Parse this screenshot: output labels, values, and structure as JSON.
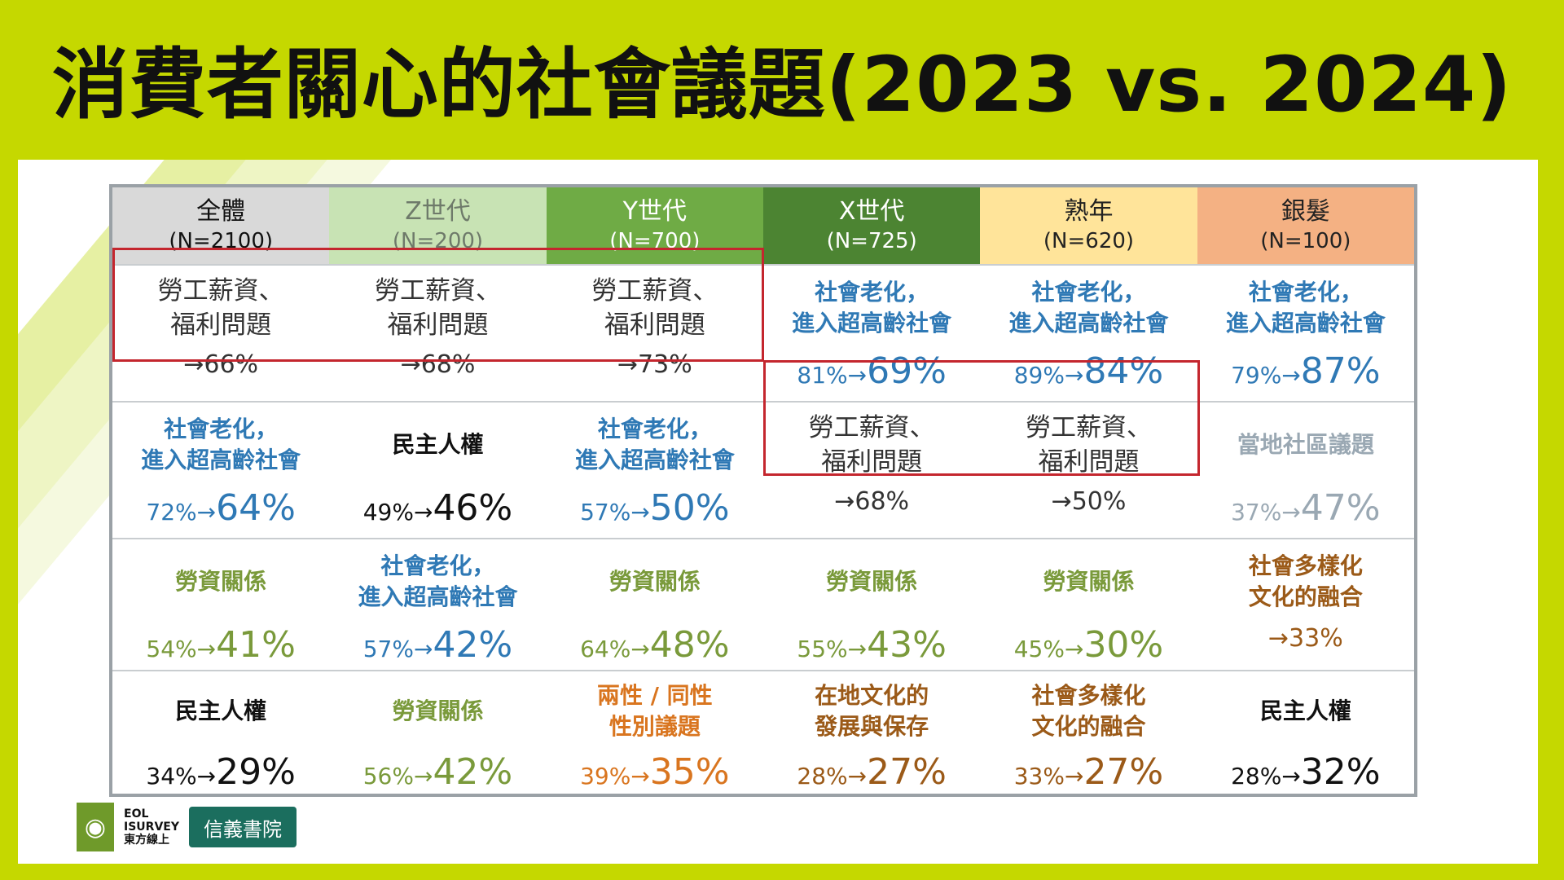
{
  "title": "消費者關心的社會議題(2023 vs. 2024)",
  "columns": [
    {
      "name": "全體",
      "n": "(N=2100)",
      "bg": "#d9d9d9",
      "fg": "#111111"
    },
    {
      "name": "Z世代",
      "n": "(N=200)",
      "bg": "#c8e3b4",
      "fg": "#6e7a6a"
    },
    {
      "name": "Y世代",
      "n": "(N=700)",
      "bg": "#6fab45",
      "fg": "#ffffff"
    },
    {
      "name": "X世代",
      "n": "(N=725)",
      "bg": "#4c8432",
      "fg": "#ffffff"
    },
    {
      "name": "熟年",
      "n": "(N=620)",
      "bg": "#ffe49a",
      "fg": "#222222"
    },
    {
      "name": "銀髮",
      "n": "(N=100)",
      "bg": "#f4b183",
      "fg": "#222222"
    }
  ],
  "rows": [
    [
      {
        "topic": "勞工薪資、\n福利問題",
        "from": "",
        "to": "→66%",
        "color": "gray",
        "style": "big"
      },
      {
        "topic": "勞工薪資、\n福利問題",
        "from": "",
        "to": "→68%",
        "color": "gray",
        "style": "big"
      },
      {
        "topic": "勞工薪資、\n福利問題",
        "from": "",
        "to": "→73%",
        "color": "gray",
        "style": "big"
      },
      {
        "topic": "社會老化，\n進入超高齡社會",
        "from": "81%→",
        "to": "69%",
        "color": "blue",
        "style": "bold"
      },
      {
        "topic": "社會老化，\n進入超高齡社會",
        "from": "89%→",
        "to": "84%",
        "color": "blue",
        "style": "bold"
      },
      {
        "topic": "社會老化，\n進入超高齡社會",
        "from": "79%→",
        "to": "87%",
        "color": "blue",
        "style": "bold"
      }
    ],
    [
      {
        "topic": "社會老化，\n進入超高齡社會",
        "from": "72%→",
        "to": "64%",
        "color": "blue",
        "style": "bold"
      },
      {
        "topic": "民主人權",
        "from": "49%→",
        "to": "46%",
        "color": "black",
        "style": "bold"
      },
      {
        "topic": "社會老化，\n進入超高齡社會",
        "from": "57%→",
        "to": "50%",
        "color": "blue",
        "style": "bold"
      },
      {
        "topic": "勞工薪資、\n福利問題",
        "from": "",
        "to": "→68%",
        "color": "gray",
        "style": "big"
      },
      {
        "topic": "勞工薪資、\n福利問題",
        "from": "",
        "to": "→50%",
        "color": "gray",
        "style": "big"
      },
      {
        "topic": "當地社區議題",
        "from": "37%→",
        "to": "47%",
        "color": "lightgray",
        "style": "bold"
      }
    ],
    [
      {
        "topic": "勞資關係",
        "from": "54%→",
        "to": "41%",
        "color": "green",
        "style": "bold"
      },
      {
        "topic": "社會老化，\n進入超高齡社會",
        "from": "57%→",
        "to": "42%",
        "color": "blue",
        "style": "bold"
      },
      {
        "topic": "勞資關係",
        "from": "64%→",
        "to": "48%",
        "color": "green",
        "style": "bold"
      },
      {
        "topic": "勞資關係",
        "from": "55%→",
        "to": "43%",
        "color": "green",
        "style": "bold"
      },
      {
        "topic": "勞資關係",
        "from": "45%→",
        "to": "30%",
        "color": "green",
        "style": "bold"
      },
      {
        "topic": "社會多樣化\n文化的融合",
        "from": "",
        "to": "→33%",
        "color": "brown",
        "style": "bold"
      }
    ],
    [
      {
        "topic": "民主人權",
        "from": "34%→",
        "to": "29%",
        "color": "black",
        "style": "bold"
      },
      {
        "topic": "勞資關係",
        "from": "56%→",
        "to": "42%",
        "color": "green",
        "style": "bold"
      },
      {
        "topic": "兩性 / 同性\n性別議題",
        "from": "39%→",
        "to": "35%",
        "color": "orange",
        "style": "bold"
      },
      {
        "topic": "在地文化的\n發展與保存",
        "from": "28%→",
        "to": "27%",
        "color": "brown",
        "style": "bold"
      },
      {
        "topic": "社會多樣化\n文化的融合",
        "from": "33%→",
        "to": "27%",
        "color": "brown",
        "style": "bold"
      },
      {
        "topic": "民主人權",
        "from": "28%→",
        "to": "32%",
        "color": "black",
        "style": "bold"
      }
    ]
  ],
  "logos": {
    "eol_line1": "EOL",
    "eol_line2": "ISURVEY",
    "eol_line3": "東方線上",
    "xinyi": "信義書院"
  }
}
